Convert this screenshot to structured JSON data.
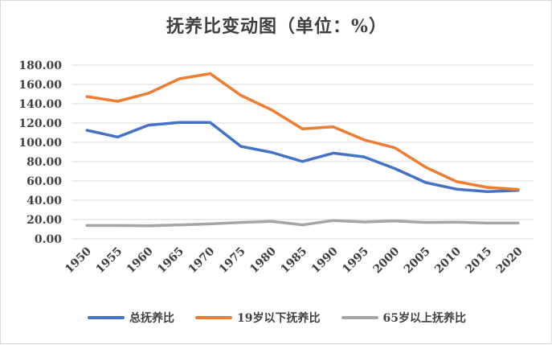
{
  "chart_data": {
    "type": "line",
    "title": "抚养比变动图（单位：%）",
    "x": [
      "1950",
      "1955",
      "1960",
      "1965",
      "1970",
      "1975",
      "1980",
      "1985",
      "1990",
      "1995",
      "2000",
      "2005",
      "2010",
      "2015",
      "2020"
    ],
    "y_ticks": [
      "0.00",
      "20.00",
      "40.00",
      "60.00",
      "80.00",
      "100.00",
      "120.00",
      "140.00",
      "160.00",
      "180.00"
    ],
    "ylim": [
      0,
      180
    ],
    "grid": true,
    "legend_position": "bottom",
    "series": [
      {
        "name": "总抚养比",
        "color": "#4472c4",
        "values": [
          112.5,
          105.5,
          117.8,
          120.6,
          120.6,
          95.8,
          89.6,
          80.2,
          88.8,
          84.9,
          72.8,
          58.3,
          51.5,
          49.0,
          50.2
        ]
      },
      {
        "name": "19岁以下抚养比",
        "color": "#ed7d31",
        "values": [
          147.4,
          142.5,
          150.9,
          165.8,
          171.2,
          148.7,
          133.6,
          114.0,
          116.0,
          102.6,
          94.3,
          74.2,
          59.3,
          53.3,
          51.2
        ]
      },
      {
        "name": "65岁以上抚养比",
        "color": "#a5a5a5",
        "values": [
          13.8,
          13.8,
          13.5,
          14.5,
          15.5,
          17.0,
          18.2,
          14.5,
          19.0,
          17.5,
          18.5,
          17.0,
          17.3,
          16.3,
          16.3
        ]
      }
    ]
  }
}
